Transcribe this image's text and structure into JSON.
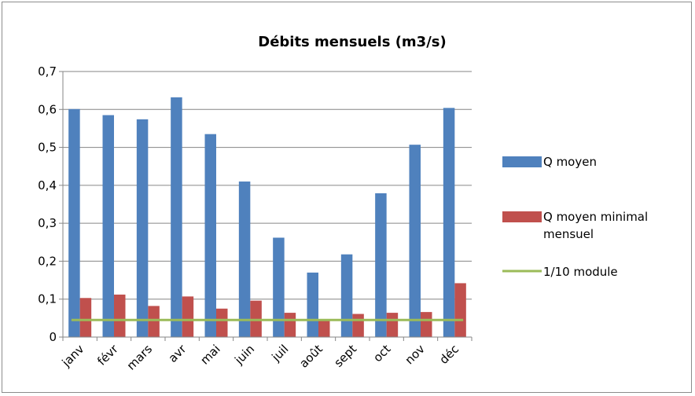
{
  "chart_data": {
    "type": "bar",
    "title": "Débits mensuels (m3/s)",
    "xlabel": "",
    "ylabel": "",
    "categories": [
      "janv",
      "févr",
      "mars",
      "avr",
      "mai",
      "juin",
      "juil",
      "août",
      "sept",
      "oct",
      "nov",
      "déc"
    ],
    "series": [
      {
        "name": "Q moyen",
        "color": "#4F81BD",
        "values": [
          0.601,
          0.585,
          0.574,
          0.632,
          0.535,
          0.41,
          0.262,
          0.17,
          0.218,
          0.379,
          0.507,
          0.604
        ]
      },
      {
        "name": "Q moyen minimal mensuel",
        "color": "#C0504D",
        "values": [
          0.103,
          0.112,
          0.082,
          0.107,
          0.075,
          0.096,
          0.064,
          0.045,
          0.061,
          0.064,
          0.066,
          0.142
        ]
      }
    ],
    "reference_line": {
      "name": "1/10 module",
      "color": "#9BBB59",
      "value": 0.045
    },
    "ylim": [
      0,
      0.7
    ],
    "yticks": [
      "0",
      "0,1",
      "0,2",
      "0,3",
      "0,4",
      "0,5",
      "0,6",
      "0,7"
    ],
    "grid": true,
    "legend_position": "right"
  }
}
